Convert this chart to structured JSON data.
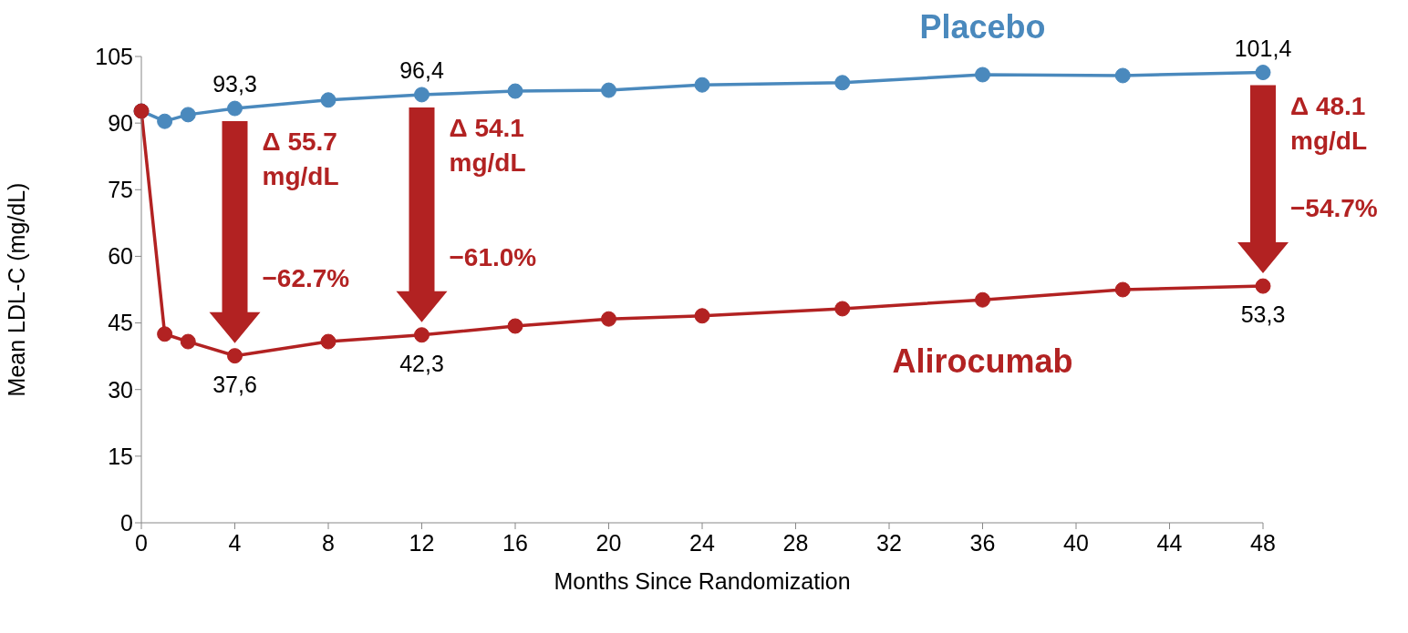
{
  "chart_data": {
    "type": "line",
    "xlabel": "Months Since Randomization",
    "ylabel": "Mean LDL-C (mg/dL)",
    "x": [
      0,
      1,
      2,
      4,
      8,
      12,
      16,
      20,
      24,
      30,
      36,
      42,
      48
    ],
    "series": [
      {
        "name": "Placebo",
        "color": "#4a89bd",
        "values": [
          92.7,
          90.4,
          91.9,
          93.3,
          95.2,
          96.4,
          97.2,
          97.4,
          98.6,
          99.1,
          100.9,
          100.7,
          101.4
        ],
        "value_labels": [
          null,
          null,
          null,
          "93,3",
          null,
          "96,4",
          null,
          null,
          null,
          null,
          null,
          null,
          "101,4"
        ]
      },
      {
        "name": "Alirocumab",
        "color": "#b22222",
        "values": [
          92.7,
          42.5,
          40.8,
          37.6,
          40.8,
          42.3,
          44.3,
          45.9,
          46.6,
          48.2,
          50.2,
          52.5,
          53.3
        ],
        "value_labels": [
          null,
          null,
          null,
          "37,6",
          null,
          "42,3",
          null,
          null,
          null,
          null,
          null,
          null,
          "53,3"
        ]
      }
    ],
    "xlim": [
      0,
      48
    ],
    "xticks": [
      0,
      4,
      8,
      12,
      16,
      20,
      24,
      28,
      32,
      36,
      40,
      44,
      48
    ],
    "ylim": [
      0,
      105
    ],
    "yticks": [
      0,
      15,
      30,
      45,
      60,
      75,
      90,
      105
    ],
    "grid": false,
    "marker": "circle",
    "line_style": "solid",
    "annotations": [
      {
        "text": "Δ 55.7 mg/dL",
        "x": 4,
        "y": 93.3
      },
      {
        "text": "−62.7%",
        "x": 4,
        "y": 37.6
      },
      {
        "text": "Δ 54.1 mg/dL",
        "x": 12,
        "y": 96.4
      },
      {
        "text": "−61.0%",
        "x": 12,
        "y": 42.3
      },
      {
        "text": "Δ 48.1 mg/dL",
        "x": 48,
        "y": 101.4
      },
      {
        "text": "−54.7%",
        "x": 48,
        "y": 53.3
      }
    ]
  }
}
